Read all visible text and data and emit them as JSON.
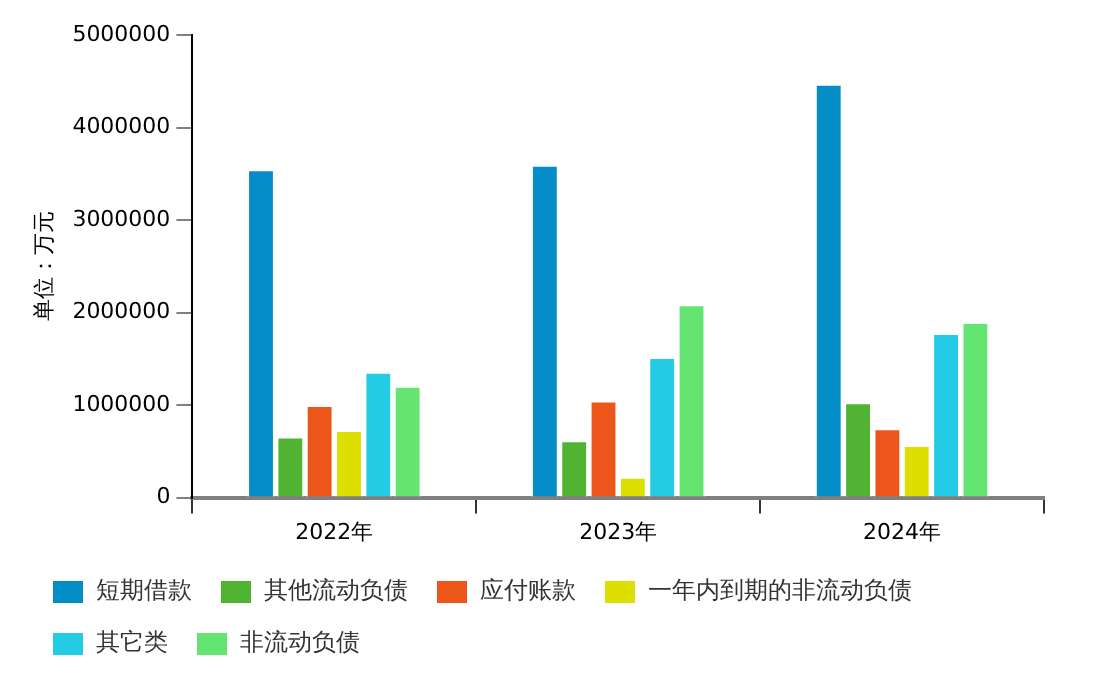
{
  "chart_data": {
    "type": "bar",
    "ylabel": "单位：万元",
    "categories": [
      "2022年",
      "2023年",
      "2024年"
    ],
    "series": [
      {
        "name": "短期借款",
        "color": "#058dc7",
        "values": [
          3550000,
          3600000,
          4475000
        ]
      },
      {
        "name": "其他流动负债",
        "color": "#50b432",
        "values": [
          660000,
          620000,
          1030000
        ]
      },
      {
        "name": "应付账款",
        "color": "#ed561b",
        "values": [
          1000000,
          1050000,
          750000
        ]
      },
      {
        "name": "一年内到期的非流动负债",
        "color": "#dddf00",
        "values": [
          730000,
          225000,
          570000
        ]
      },
      {
        "name": "其它类",
        "color": "#24cbe5",
        "values": [
          1360000,
          1520000,
          1780000
        ]
      },
      {
        "name": "非流动负债",
        "color": "#64e572",
        "values": [
          1210000,
          2090000,
          1900000
        ]
      }
    ],
    "ylim": [
      0,
      5000000
    ],
    "yticks": [
      0,
      1000000,
      2000000,
      3000000,
      4000000,
      5000000
    ],
    "grid": false,
    "legend": "bottom left"
  }
}
